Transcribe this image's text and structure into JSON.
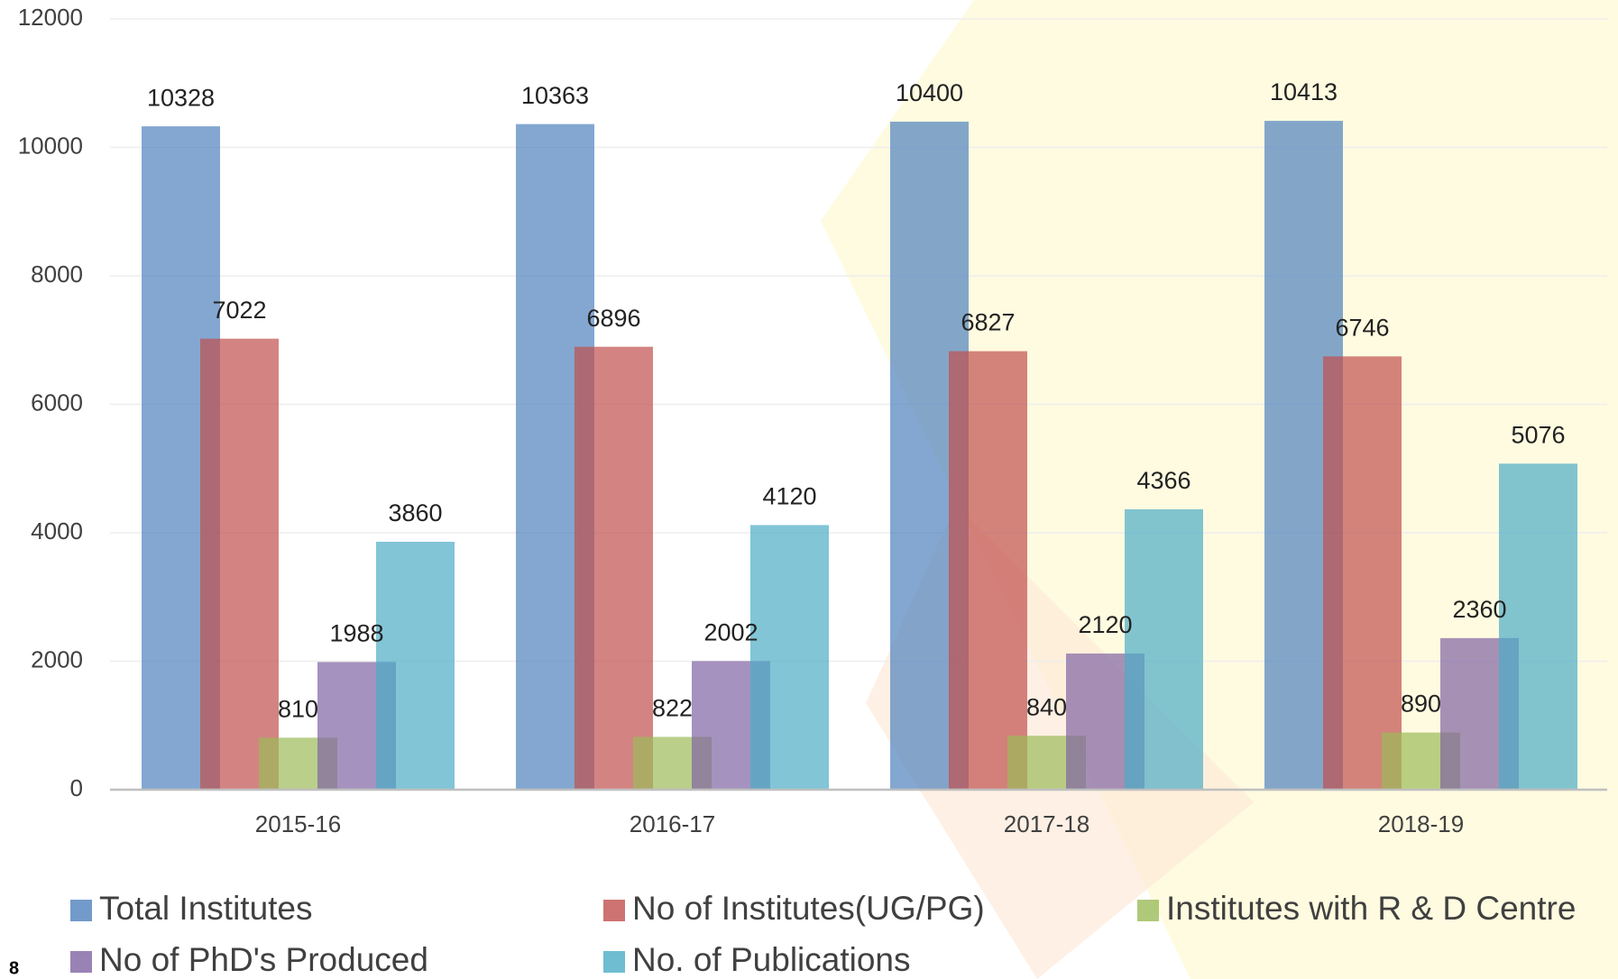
{
  "chart_data": {
    "type": "bar",
    "categories": [
      "2015-16",
      "2016-17",
      "2017-18",
      "2018-19"
    ],
    "series": [
      {
        "name": "Total Institutes",
        "color": "#4f81bd",
        "values": [
          10328,
          10363,
          10400,
          10413
        ]
      },
      {
        "name": "No of Institutes(UG/PG)",
        "color": "#c0504d",
        "values": [
          7022,
          6896,
          6827,
          6746
        ]
      },
      {
        "name": "Institutes with R & D Centre",
        "color": "#9bbb59",
        "values": [
          810,
          822,
          840,
          890
        ]
      },
      {
        "name": "No of PhD's Produced",
        "color": "#8064a2",
        "values": [
          1988,
          2002,
          2120,
          2360
        ]
      },
      {
        "name": "No. of Publications",
        "color": "#4bacc6",
        "values": [
          3860,
          4120,
          4366,
          5076
        ]
      }
    ],
    "ylim": [
      0,
      12000
    ],
    "yticks": [
      0,
      2000,
      4000,
      6000,
      8000,
      10000,
      12000
    ],
    "grid": true,
    "page_number": "8"
  }
}
